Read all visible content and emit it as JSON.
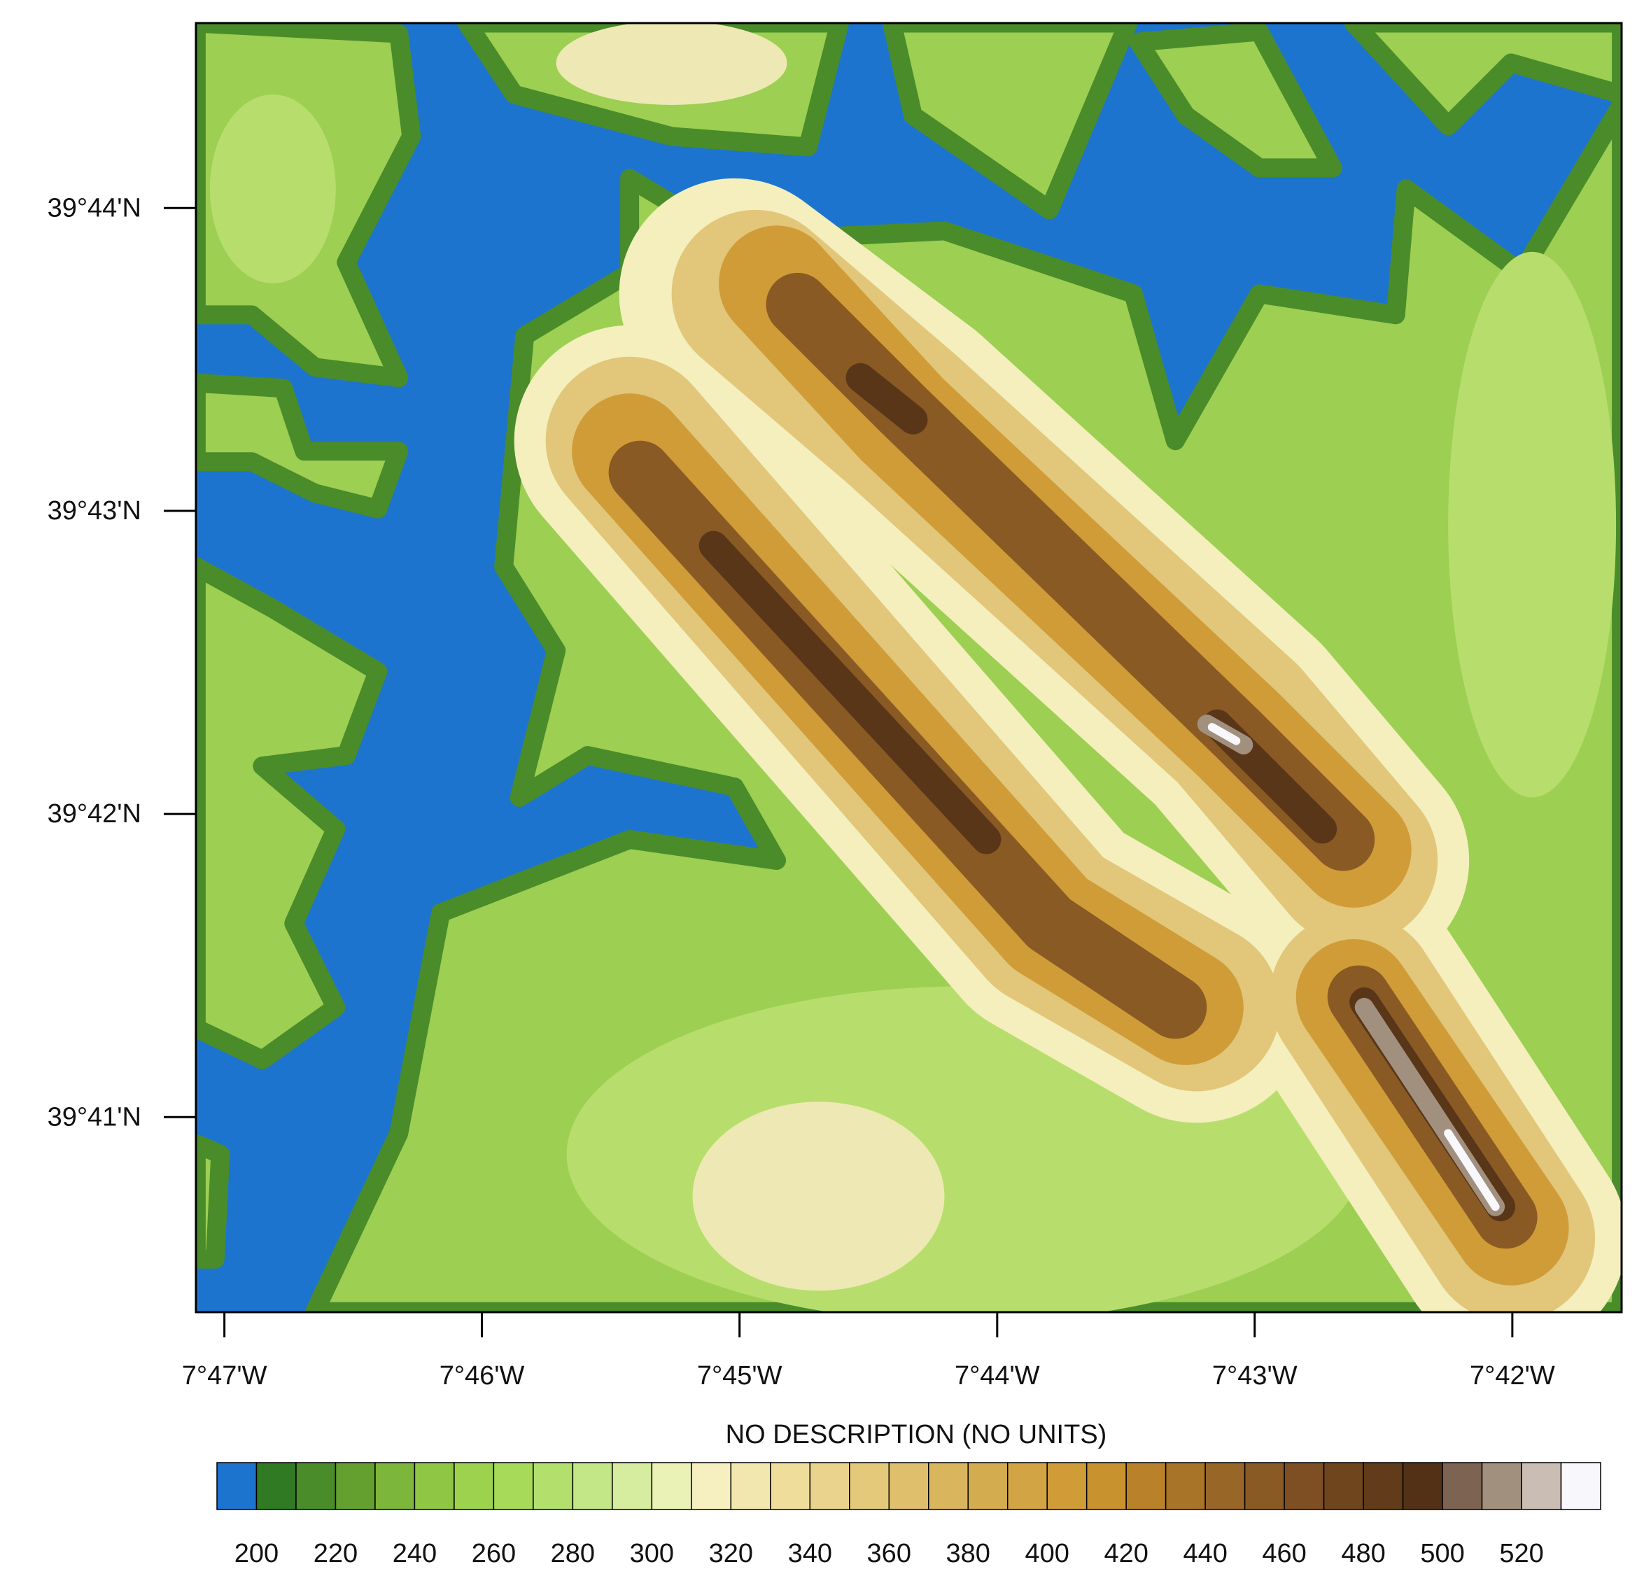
{
  "chart_data": {
    "type": "contour",
    "title": "NO DESCRIPTION  (NO UNITS)",
    "xlim": [
      -7.78517,
      -7.69293
    ],
    "ylim": [
      39.6726,
      39.7435
    ],
    "xticks": [
      {
        "value": -7.78333,
        "label": "7°47'W"
      },
      {
        "value": -7.76667,
        "label": "7°46'W"
      },
      {
        "value": -7.75,
        "label": "7°45'W"
      },
      {
        "value": -7.73333,
        "label": "7°44'W"
      },
      {
        "value": -7.71667,
        "label": "7°43'W"
      },
      {
        "value": -7.7,
        "label": "7°42'W"
      }
    ],
    "yticks": [
      {
        "value": 39.68333,
        "label": "39°41'N"
      },
      {
        "value": 39.7,
        "label": "39°42'N"
      },
      {
        "value": 39.71667,
        "label": "39°43'N"
      },
      {
        "value": 39.73333,
        "label": "39°44'N"
      }
    ],
    "colorbar": {
      "lim": [
        190,
        540
      ],
      "ticks": [
        200,
        220,
        240,
        260,
        280,
        300,
        320,
        340,
        360,
        380,
        400,
        420,
        440,
        460,
        480,
        500,
        520
      ],
      "colors": [
        "#1c74cf",
        "#2f7a22",
        "#4a8c2a",
        "#63a030",
        "#7cb63a",
        "#8fc744",
        "#9dd24e",
        "#a8da5a",
        "#b3e06c",
        "#c3e787",
        "#d6eda0",
        "#eaf2b6",
        "#f6efbf",
        "#f3e7b0",
        "#efdd9c",
        "#ead38c",
        "#e4c97b",
        "#dfbf6c",
        "#d9b55e",
        "#d4ac50",
        "#d2a443",
        "#cf9c38",
        "#c8922e",
        "#b9822a",
        "#a87428",
        "#986627",
        "#8a5a25",
        "#7d4f22",
        "#6f451e",
        "#613b1a",
        "#533117",
        "#7d6452",
        "#a2907f",
        "#c9bdb4",
        "#f7f7fc"
      ]
    }
  }
}
